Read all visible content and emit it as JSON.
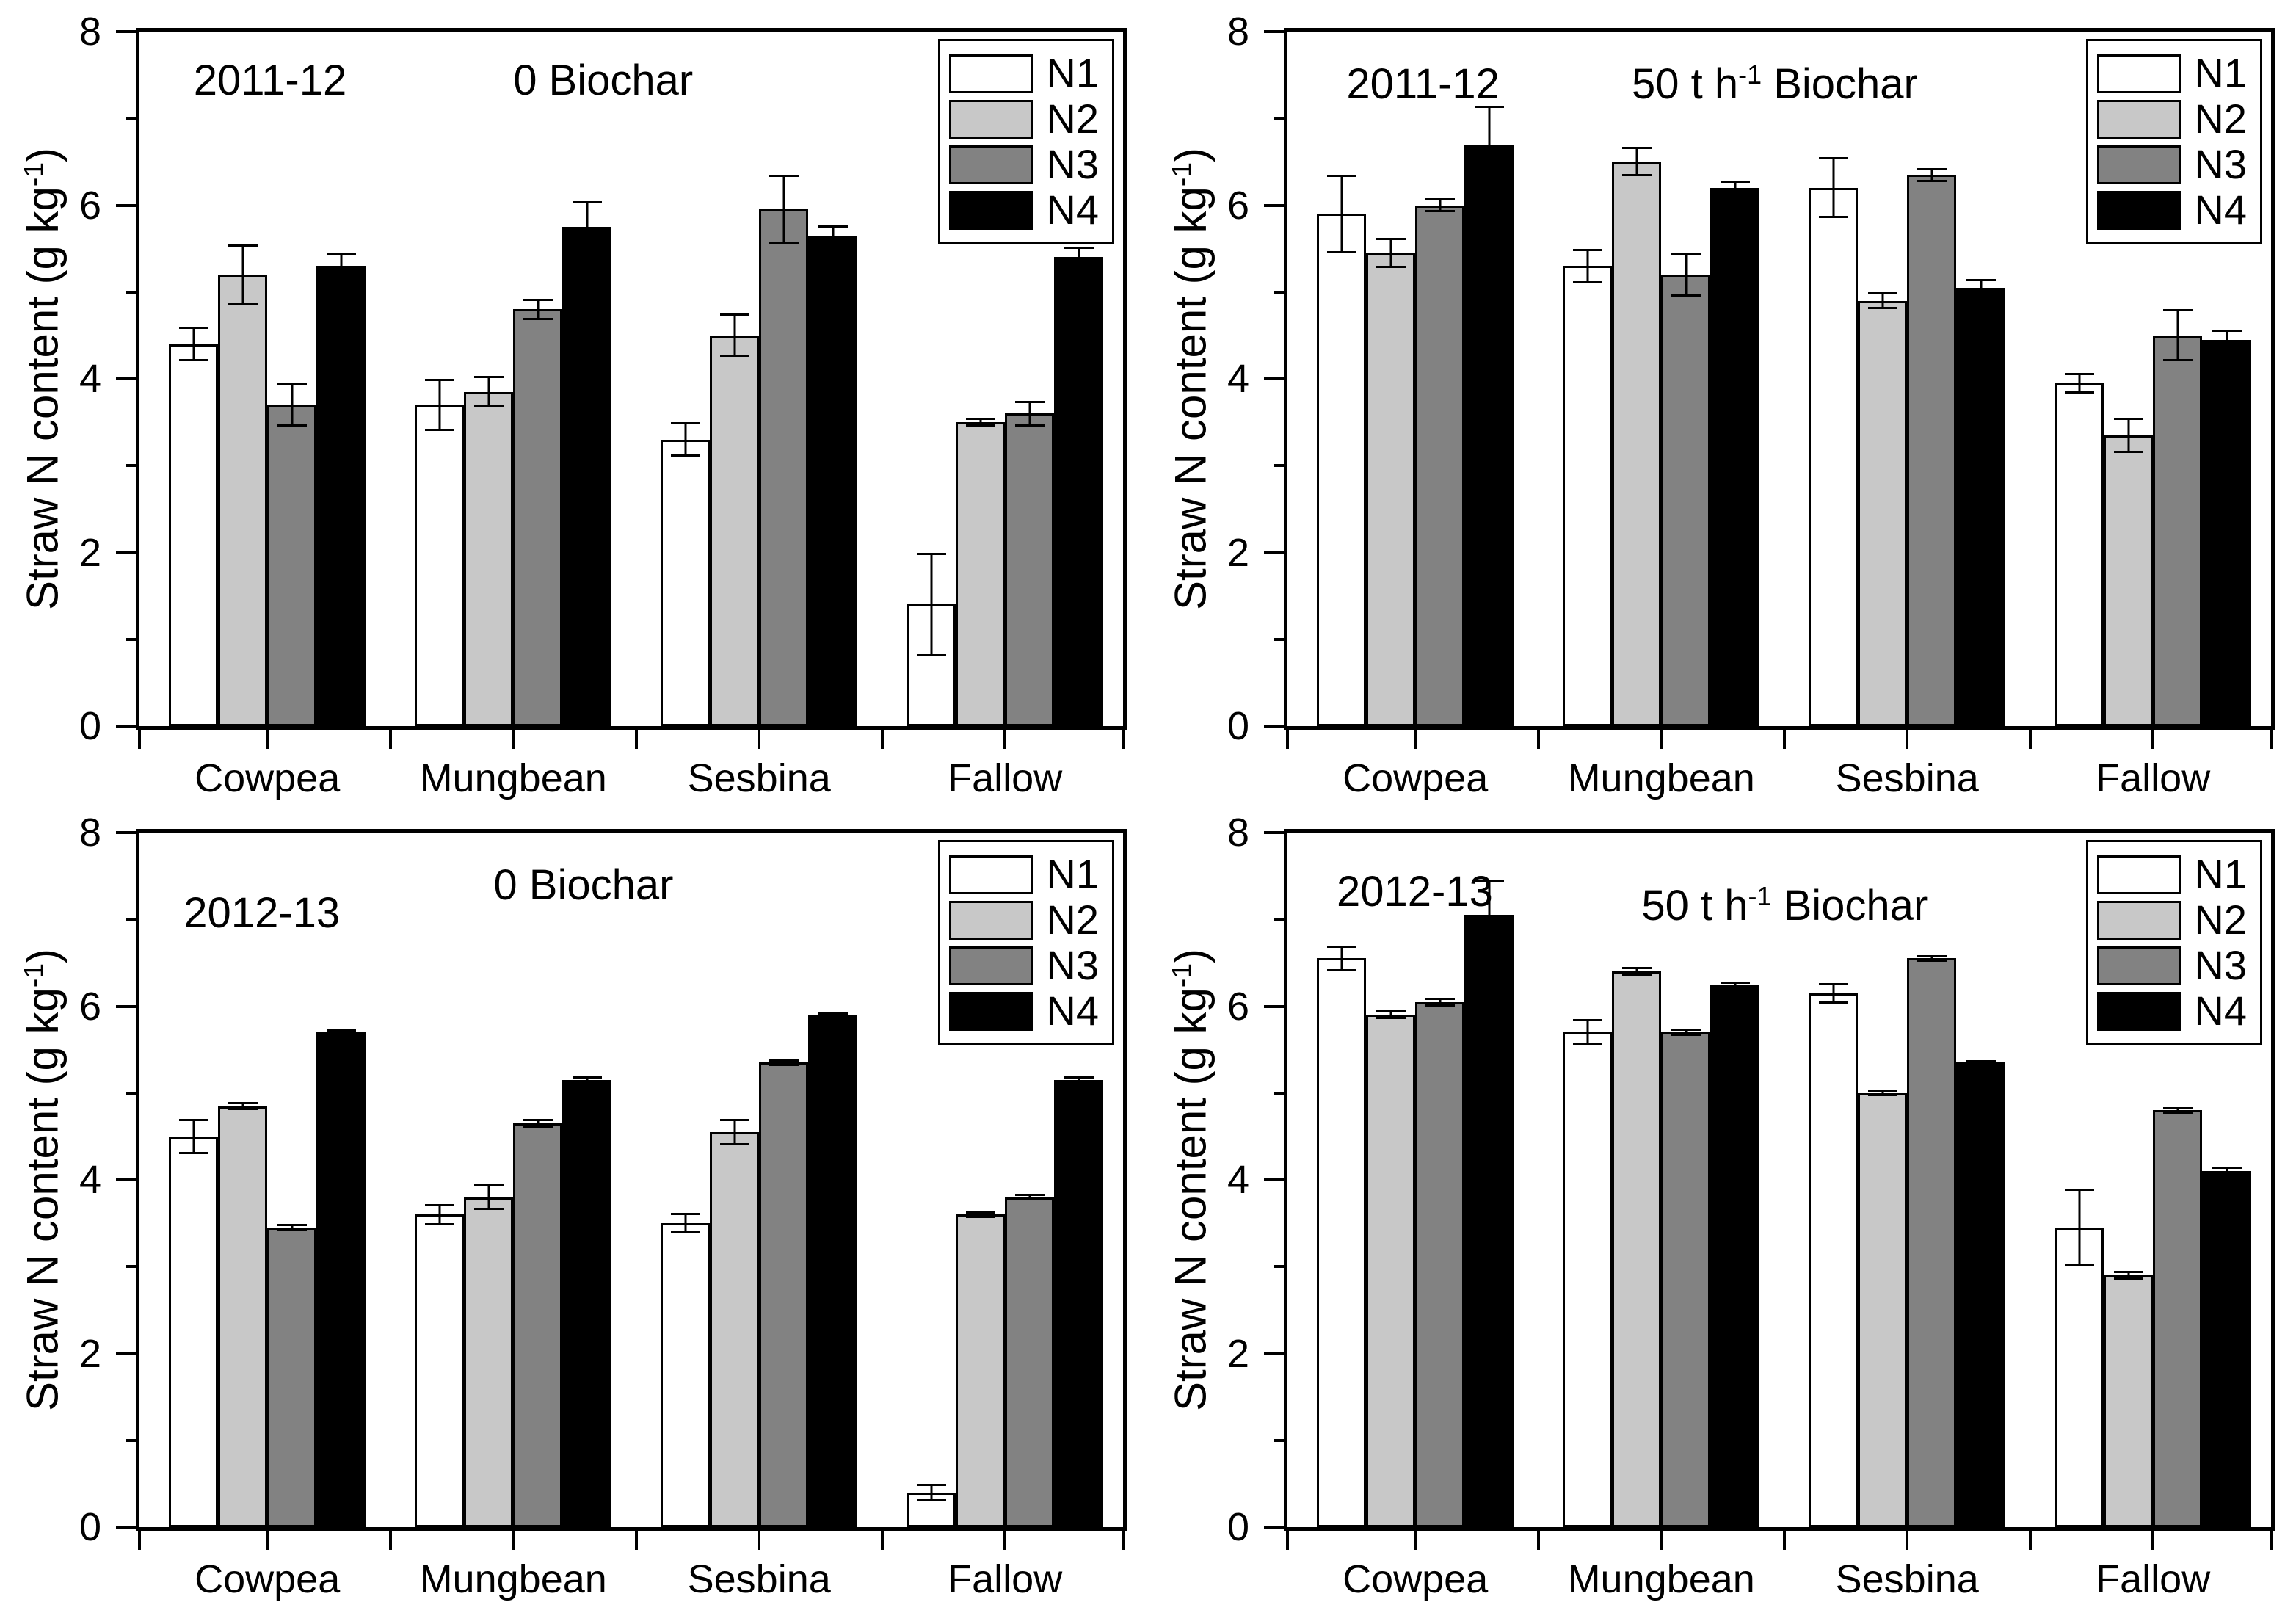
{
  "page": {
    "background": "#ffffff"
  },
  "chart_data": {
    "type": "bar",
    "grouped": true,
    "title": "",
    "ylabel_parts": {
      "pre": "Straw N content (g kg",
      "sup": "-1",
      "post": ")"
    },
    "ylim": [
      0,
      8
    ],
    "yticks": [
      0,
      2,
      4,
      6,
      8
    ],
    "yticks_minor": [
      1,
      3,
      5,
      7
    ],
    "categories": [
      "Cowpea",
      "Mungbean",
      "Sesbina",
      "Fallow"
    ],
    "legend_labels": [
      "N1",
      "N2",
      "N3",
      "N4"
    ],
    "series_colors": [
      "#ffffff",
      "#c8c8c8",
      "#828282",
      "#000000"
    ],
    "grid": false,
    "legend_position": "top-right-inside",
    "layout": {
      "category_centers_pct": [
        13,
        38,
        63,
        88
      ],
      "bar_width_pct": 5,
      "boundary_ticks_pct": [
        0,
        25.5,
        50.5,
        75.5,
        100
      ]
    },
    "panels": [
      {
        "id": "2011-12-0-biochar",
        "year": "2011-12",
        "title_parts": {
          "pre": "0 Biochar",
          "sup": "",
          "post": ""
        },
        "year_pos": {
          "left": 5.5,
          "top": 3.5
        },
        "title_pos": {
          "left": 38,
          "top": 3.5
        },
        "series": [
          {
            "name": "N1",
            "values": [
              4.4,
              3.7,
              3.3,
              1.4
            ],
            "errors": [
              0.2,
              0.3,
              0.2,
              0.6
            ]
          },
          {
            "name": "N2",
            "values": [
              5.2,
              3.85,
              4.5,
              3.5
            ],
            "errors": [
              0.35,
              0.18,
              0.25,
              0.05
            ]
          },
          {
            "name": "N3",
            "values": [
              3.7,
              4.8,
              5.95,
              3.6
            ],
            "errors": [
              0.25,
              0.12,
              0.4,
              0.15
            ]
          },
          {
            "name": "N4",
            "values": [
              5.3,
              5.75,
              5.65,
              5.4
            ],
            "errors": [
              0.15,
              0.3,
              0.12,
              0.12
            ]
          }
        ]
      },
      {
        "id": "2011-12-50-biochar",
        "year": "2011-12",
        "title_parts": {
          "pre": "50 t h",
          "sup": "-1",
          "post": " Biochar"
        },
        "year_pos": {
          "left": 6,
          "top": 4
        },
        "title_pos": {
          "left": 35,
          "top": 4
        },
        "series": [
          {
            "name": "N1",
            "values": [
              5.9,
              5.3,
              6.2,
              3.95
            ],
            "errors": [
              0.45,
              0.2,
              0.35,
              0.12
            ]
          },
          {
            "name": "N2",
            "values": [
              5.45,
              6.5,
              4.9,
              3.35
            ],
            "errors": [
              0.17,
              0.17,
              0.1,
              0.2
            ]
          },
          {
            "name": "N3",
            "values": [
              6.0,
              5.2,
              6.35,
              4.5
            ],
            "errors": [
              0.08,
              0.25,
              0.08,
              0.3
            ]
          },
          {
            "name": "N4",
            "values": [
              6.7,
              6.2,
              5.05,
              4.45
            ],
            "errors": [
              0.45,
              0.08,
              0.1,
              0.12
            ]
          }
        ]
      },
      {
        "id": "2012-13-0-biochar",
        "year": "2012-13",
        "title_parts": {
          "pre": "0 Biochar",
          "sup": "",
          "post": ""
        },
        "year_pos": {
          "left": 4.5,
          "top": 8
        },
        "title_pos": {
          "left": 36,
          "top": 4
        },
        "series": [
          {
            "name": "N1",
            "values": [
              4.5,
              3.6,
              3.5,
              0.4
            ],
            "errors": [
              0.2,
              0.12,
              0.12,
              0.1
            ]
          },
          {
            "name": "N2",
            "values": [
              4.85,
              3.8,
              4.55,
              3.6
            ],
            "errors": [
              0.05,
              0.15,
              0.15,
              0.04
            ]
          },
          {
            "name": "N3",
            "values": [
              3.45,
              4.65,
              5.35,
              3.8
            ],
            "errors": [
              0.04,
              0.05,
              0.04,
              0.04
            ]
          },
          {
            "name": "N4",
            "values": [
              5.7,
              5.15,
              5.9,
              5.15
            ],
            "errors": [
              0.03,
              0.04,
              0.03,
              0.04
            ]
          }
        ]
      },
      {
        "id": "2012-13-50-biochar",
        "year": "2012-13",
        "title_parts": {
          "pre": "50 t h",
          "sup": "-1",
          "post": " Biochar"
        },
        "year_pos": {
          "left": 5,
          "top": 5
        },
        "title_pos": {
          "left": 36,
          "top": 7
        },
        "series": [
          {
            "name": "N1",
            "values": [
              6.55,
              5.7,
              6.15,
              3.45
            ],
            "errors": [
              0.15,
              0.15,
              0.12,
              0.45
            ]
          },
          {
            "name": "N2",
            "values": [
              5.9,
              6.4,
              5.0,
              2.9
            ],
            "errors": [
              0.05,
              0.05,
              0.04,
              0.05
            ]
          },
          {
            "name": "N3",
            "values": [
              6.05,
              5.7,
              6.55,
              4.8
            ],
            "errors": [
              0.05,
              0.04,
              0.04,
              0.04
            ]
          },
          {
            "name": "N4",
            "values": [
              7.05,
              6.25,
              5.35,
              4.1
            ],
            "errors": [
              0.4,
              0.03,
              0.03,
              0.05
            ]
          }
        ]
      }
    ]
  }
}
